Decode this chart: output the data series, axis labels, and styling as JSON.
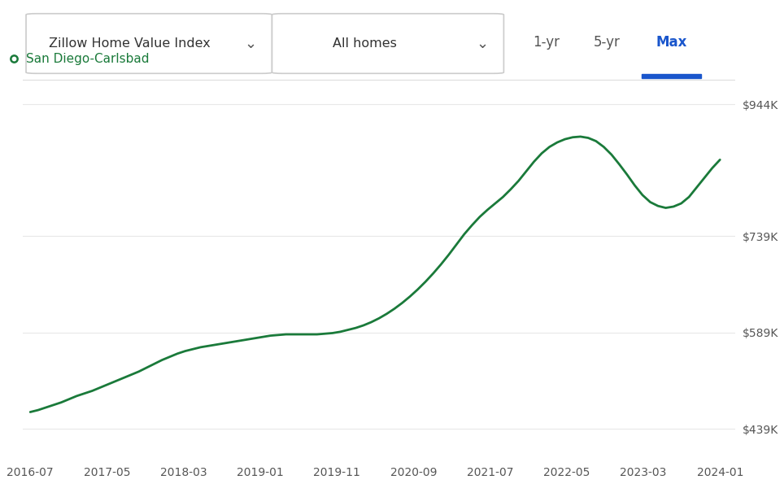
{
  "legend_label": "San Diego-Carlsbad",
  "line_color": "#1a7a3a",
  "background_color": "#ffffff",
  "grid_color": "#e8e8e8",
  "ytick_labels": [
    "$439K",
    "$589K",
    "$739K",
    "$944K"
  ],
  "ytick_values": [
    439000,
    589000,
    739000,
    944000
  ],
  "ylim": [
    390000,
    980000
  ],
  "xtick_labels": [
    "2016-07",
    "2017-05",
    "2018-03",
    "2019-01",
    "2019-11",
    "2020-09",
    "2021-07",
    "2022-05",
    "2023-03",
    "2024-01"
  ],
  "dropdown1_label": "Zillow Home Value Index",
  "dropdown2_label": "All homes",
  "btn_labels": [
    "1-yr",
    "5-yr",
    "Max"
  ],
  "btn_active_idx": 2,
  "btn_active_color": "#1a56cc",
  "btn_inactive_color": "#555555",
  "x_values": [
    0,
    1,
    2,
    3,
    4,
    5,
    6,
    7,
    8,
    9,
    10,
    11,
    12,
    13,
    14,
    15,
    16,
    17,
    18,
    19,
    20,
    21,
    22,
    23,
    24,
    25,
    26,
    27,
    28,
    29,
    30,
    31,
    32,
    33,
    34,
    35,
    36,
    37,
    38,
    39,
    40,
    41,
    42,
    43,
    44,
    45,
    46,
    47,
    48,
    49,
    50,
    51,
    52,
    53,
    54,
    55,
    56,
    57,
    58,
    59,
    60,
    61,
    62,
    63,
    64,
    65,
    66,
    67,
    68,
    69,
    70,
    71,
    72,
    73,
    74,
    75,
    76,
    77,
    78,
    79,
    80,
    81,
    82,
    83,
    84,
    85,
    86,
    87,
    88,
    89
  ],
  "y_values": [
    465000,
    468000,
    472000,
    476000,
    480000,
    485000,
    490000,
    494000,
    498000,
    503000,
    508000,
    513000,
    518000,
    523000,
    528000,
    534000,
    540000,
    546000,
    551000,
    556000,
    560000,
    563000,
    566000,
    568000,
    570000,
    572000,
    574000,
    576000,
    578000,
    580000,
    582000,
    584000,
    585000,
    586000,
    586000,
    586000,
    586000,
    586000,
    587000,
    588000,
    590000,
    593000,
    596000,
    600000,
    605000,
    611000,
    618000,
    626000,
    635000,
    645000,
    656000,
    668000,
    681000,
    695000,
    710000,
    726000,
    742000,
    756000,
    769000,
    780000,
    790000,
    800000,
    812000,
    825000,
    840000,
    855000,
    868000,
    878000,
    885000,
    890000,
    893000,
    894000,
    892000,
    887000,
    878000,
    866000,
    851000,
    835000,
    818000,
    803000,
    792000,
    786000,
    783000,
    785000,
    790000,
    800000,
    815000,
    830000,
    845000,
    858000
  ]
}
